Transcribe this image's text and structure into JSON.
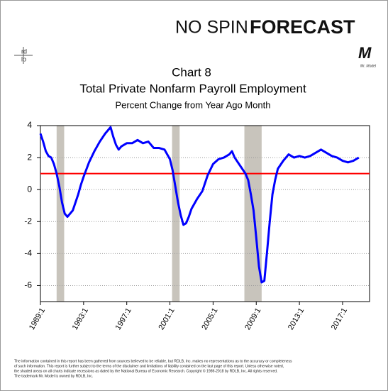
{
  "chart_data": {
    "type": "line",
    "brand": {
      "name_left": "NO SPIN",
      "name_right": "FORECAST",
      "logo_top": "rd",
      "logo_bottom": "lb",
      "mark": "M",
      "mark_caption": "Mr. Model"
    },
    "chart_number": "Chart 8",
    "title": "Total Private Nonfarm Payroll Employment",
    "subtitle": "Percent Change from Year Ago Month",
    "x": [
      1989.0,
      1989.25,
      1989.5,
      1989.75,
      1990.0,
      1990.25,
      1990.5,
      1990.75,
      1991.0,
      1991.25,
      1991.5,
      1991.75,
      1992.0,
      1992.25,
      1992.5,
      1992.75,
      1993.0,
      1993.5,
      1994.0,
      1994.5,
      1995.0,
      1995.25,
      1995.5,
      1995.75,
      1996.0,
      1996.25,
      1996.5,
      1997.0,
      1997.5,
      1998.0,
      1998.5,
      1999.0,
      1999.5,
      2000.0,
      2000.5,
      2001.0,
      2001.25,
      2001.5,
      2001.75,
      2002.0,
      2002.25,
      2002.5,
      2002.75,
      2003.0,
      2003.5,
      2004.0,
      2004.5,
      2005.0,
      2005.5,
      2006.0,
      2006.5,
      2006.75,
      2007.0,
      2007.5,
      2008.0,
      2008.25,
      2008.5,
      2008.75,
      2009.0,
      2009.25,
      2009.5,
      2009.75,
      2010.0,
      2010.25,
      2010.5,
      2010.75,
      2011.0,
      2011.5,
      2012.0,
      2012.5,
      2013.0,
      2013.5,
      2014.0,
      2014.5,
      2015.0,
      2015.5,
      2016.0,
      2016.5,
      2017.0,
      2017.5,
      2018.0,
      2018.5
    ],
    "values": [
      3.5,
      3.0,
      2.4,
      2.1,
      2.0,
      1.6,
      1.0,
      0.2,
      -0.8,
      -1.5,
      -1.7,
      -1.5,
      -1.3,
      -0.8,
      -0.3,
      0.3,
      0.8,
      1.7,
      2.4,
      3.0,
      3.5,
      3.7,
      3.9,
      3.3,
      2.8,
      2.5,
      2.7,
      2.9,
      2.9,
      3.1,
      2.9,
      3.0,
      2.6,
      2.6,
      2.5,
      1.9,
      1.2,
      0.2,
      -0.8,
      -1.6,
      -2.2,
      -2.1,
      -1.7,
      -1.2,
      -0.6,
      -0.1,
      0.9,
      1.6,
      1.9,
      2.0,
      2.2,
      2.4,
      2.0,
      1.5,
      1.0,
      0.6,
      -0.3,
      -1.3,
      -3.0,
      -4.8,
      -5.8,
      -5.7,
      -3.9,
      -2.0,
      -0.3,
      0.6,
      1.3,
      1.8,
      2.2,
      2.0,
      2.1,
      2.0,
      2.1,
      2.3,
      2.5,
      2.3,
      2.1,
      2.0,
      1.8,
      1.7,
      1.8,
      2.0
    ],
    "color": "#0000ff",
    "recessions": [
      [
        1990.5,
        1991.2
      ],
      [
        2001.2,
        2001.9
      ],
      [
        2007.9,
        2009.5
      ]
    ],
    "recession_color": "#c8c4bc",
    "reference_line": {
      "value": 1,
      "color": "#ff0000"
    },
    "xlim": [
      1989,
      2019.5
    ],
    "xticks": [
      {
        "value": 1989,
        "label": "1989:1"
      },
      {
        "value": 1993,
        "label": "1993:1"
      },
      {
        "value": 1997,
        "label": "1997:1"
      },
      {
        "value": 2001,
        "label": "2001:1"
      },
      {
        "value": 2005,
        "label": "2005:1"
      },
      {
        "value": 2009,
        "label": "2009:1"
      },
      {
        "value": 2013,
        "label": "2013:1"
      },
      {
        "value": 2017,
        "label": "2017:1"
      }
    ],
    "ylim": [
      -7,
      4
    ],
    "yticks": [
      -6,
      -4,
      -2,
      0,
      2,
      4
    ],
    "grid": true,
    "footnote": [
      "The information contained in this report has been gathered from sources believed to be reliable, but RDLB, Inc. makes no representations as to the accuracy or completeness",
      "of such information. This report is further subject to the terms of the disclaimer and limitations of liability contained on the last page of this report. Unless otherwise noted,",
      "the shaded areas on all charts indicate recessions as dated by the National Bureau of Economic Research. Copyright © 1989-2018 by RDLB, Inc. All rights reserved.",
      "The trademark Mr. Model is owned by RDLB, Inc."
    ]
  }
}
